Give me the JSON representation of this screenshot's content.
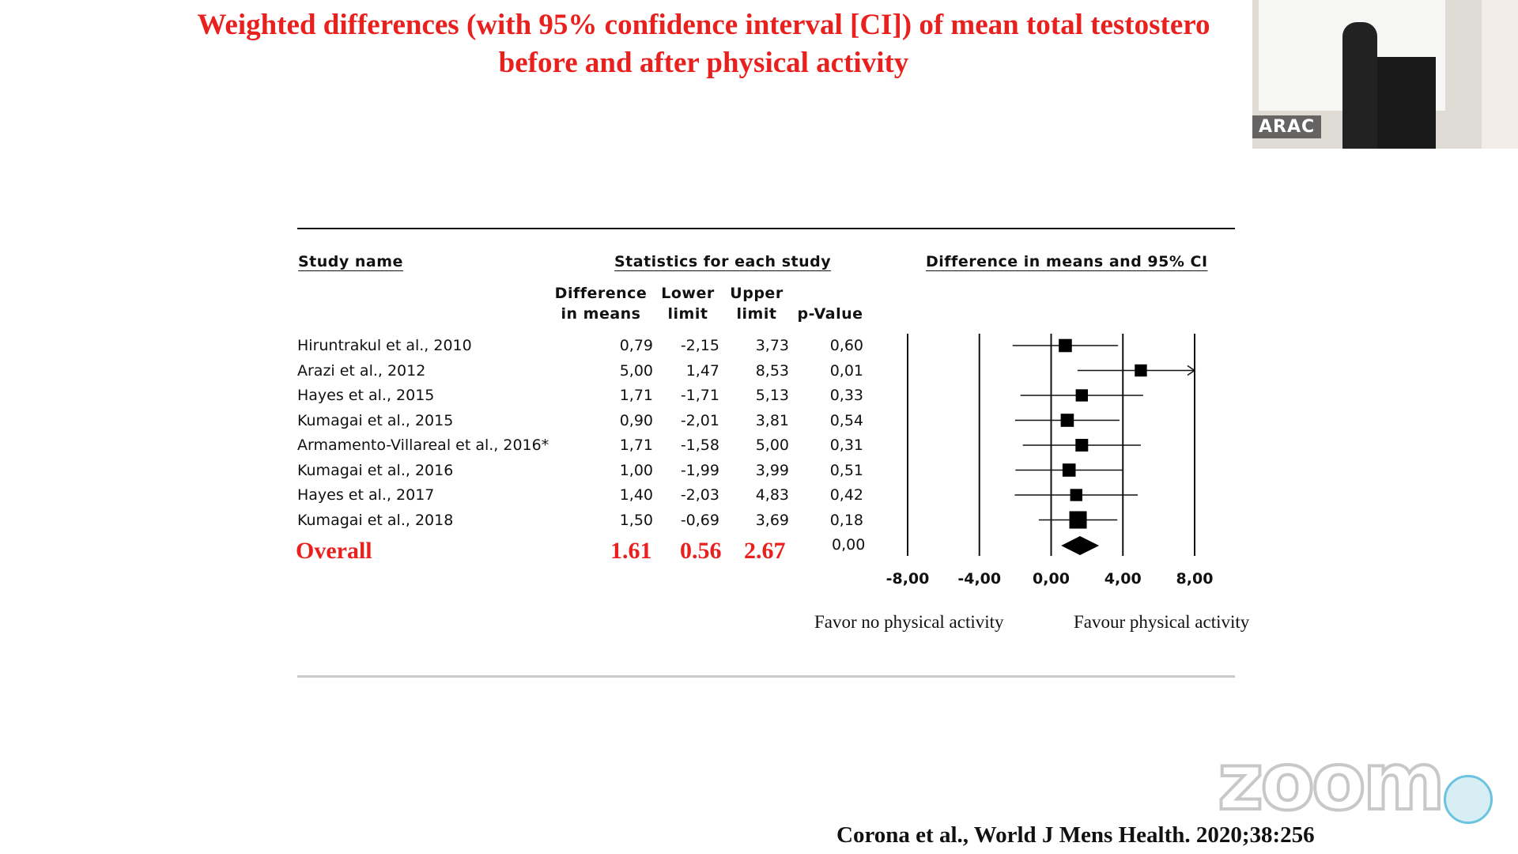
{
  "slide": {
    "title_line1": "Weighted differences (with 95% confidence interval [CI]) of mean total testostero",
    "title_line2": "before and after physical activity",
    "citation": "Corona et al., World J Mens Health. 2020;38:256"
  },
  "headers": {
    "study_name": "Study name",
    "stats": "Statistics for each study",
    "plot": "Difference in means and 95% CI",
    "col_diff_1": "Difference",
    "col_diff_2": "in means",
    "col_lower_1": "Lower",
    "col_lower_2": "limit",
    "col_upper_1": "Upper",
    "col_upper_2": "limit",
    "col_p": "p-Value"
  },
  "chart_data": {
    "type": "forest",
    "xlim": [
      -8,
      8
    ],
    "x_ticks": [
      -8,
      -4,
      0,
      4,
      8
    ],
    "x_tick_labels": [
      "-8,00",
      "-4,00",
      "0,00",
      "4,00",
      "8,00"
    ],
    "favor_left": "Favor no physical activity",
    "favor_right": "Favour physical activity",
    "studies": [
      {
        "name": "Hiruntrakul et al., 2010",
        "diff": 0.79,
        "lower": -2.15,
        "upper": 3.73,
        "p": "0,60",
        "diff_txt": "0,79",
        "lower_txt": "-2,15",
        "upper_txt": "3,73",
        "weight": 0.55
      },
      {
        "name": "Arazi et al., 2012",
        "diff": 5.0,
        "lower": 1.47,
        "upper": 8.53,
        "p": "0,01",
        "diff_txt": "5,00",
        "lower_txt": "1,47",
        "upper_txt": "8,53",
        "weight": 0.45
      },
      {
        "name": "Hayes et al., 2015",
        "diff": 1.71,
        "lower": -1.71,
        "upper": 5.13,
        "p": "0,33",
        "diff_txt": "1,71",
        "lower_txt": "-1,71",
        "upper_txt": "5,13",
        "weight": 0.45
      },
      {
        "name": "Kumagai et al., 2015",
        "diff": 0.9,
        "lower": -2.01,
        "upper": 3.81,
        "p": "0,54",
        "diff_txt": "0,90",
        "lower_txt": "-2,01",
        "upper_txt": "3,81",
        "weight": 0.55
      },
      {
        "name": "Armamento-Villareal et al., 2016*",
        "diff": 1.71,
        "lower": -1.58,
        "upper": 5.0,
        "p": "0,31",
        "diff_txt": "1,71",
        "lower_txt": "-1,58",
        "upper_txt": "5,00",
        "weight": 0.5
      },
      {
        "name": "Kumagai et al., 2016",
        "diff": 1.0,
        "lower": -1.99,
        "upper": 3.99,
        "p": "0,51",
        "diff_txt": "1,00",
        "lower_txt": "-1,99",
        "upper_txt": "3,99",
        "weight": 0.55
      },
      {
        "name": "Hayes et al., 2017",
        "diff": 1.4,
        "lower": -2.03,
        "upper": 4.83,
        "p": "0,42",
        "diff_txt": "1,40",
        "lower_txt": "-2,03",
        "upper_txt": "4,83",
        "weight": 0.45
      },
      {
        "name": "Kumagai et al., 2018",
        "diff": 1.5,
        "lower": -0.69,
        "upper": 3.69,
        "p": "0,18",
        "diff_txt": "1,50",
        "lower_txt": "-0,69",
        "upper_txt": "3,69",
        "weight": 1.0
      }
    ],
    "overall": {
      "name": "Overall",
      "diff": 1.61,
      "lower": 0.56,
      "upper": 2.67,
      "p": "0,00",
      "diff_txt": "1.61",
      "lower_txt": "0.56",
      "upper_txt": "2.67"
    }
  },
  "video": {
    "participant_label": "ARAC"
  },
  "watermark": {
    "brand": "zoom"
  },
  "colors": {
    "title_red": "#e8211f",
    "ink": "#111111"
  }
}
